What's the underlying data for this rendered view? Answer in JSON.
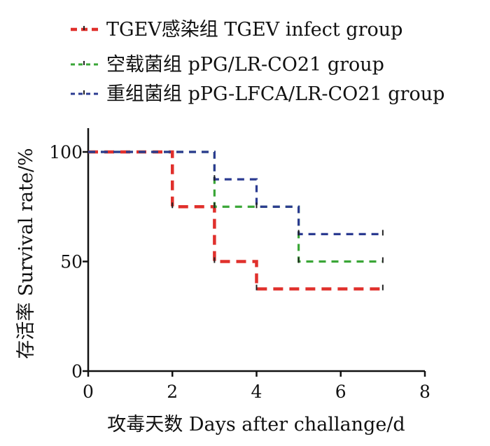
{
  "chart_data": {
    "type": "line",
    "subtype": "kaplan-meier step",
    "title": "",
    "xlabel": "攻毒天数  Days after challange/d",
    "ylabel": "存活率  Survival rate/%",
    "xlim": [
      0,
      8
    ],
    "ylim": [
      0,
      100
    ],
    "x_ticks": [
      "0",
      "2",
      "4",
      "6",
      "8"
    ],
    "y_ticks": [
      "0",
      "50",
      "100"
    ],
    "grid": false,
    "legend_position": "top",
    "series": [
      {
        "name": "TGEV感染组  TGEV infect group",
        "color": "#e0302c",
        "line_style": "dashed-thick",
        "x": [
          0,
          2,
          3,
          4,
          7
        ],
        "y": [
          100,
          75,
          50,
          37.5,
          37.5
        ]
      },
      {
        "name": "空载菌组  pPG/LR-CO21 group",
        "color": "#3aa637",
        "line_style": "dashed",
        "x": [
          0,
          3,
          5,
          7
        ],
        "y": [
          100,
          75,
          50,
          50
        ]
      },
      {
        "name": "重组菌组  pPG-LFCA/LR-CO21 group",
        "color": "#2b3b91",
        "line_style": "dashed",
        "x": [
          0,
          3,
          4,
          5,
          7
        ],
        "y": [
          100,
          87.5,
          75,
          62.5,
          62.5
        ]
      }
    ]
  }
}
